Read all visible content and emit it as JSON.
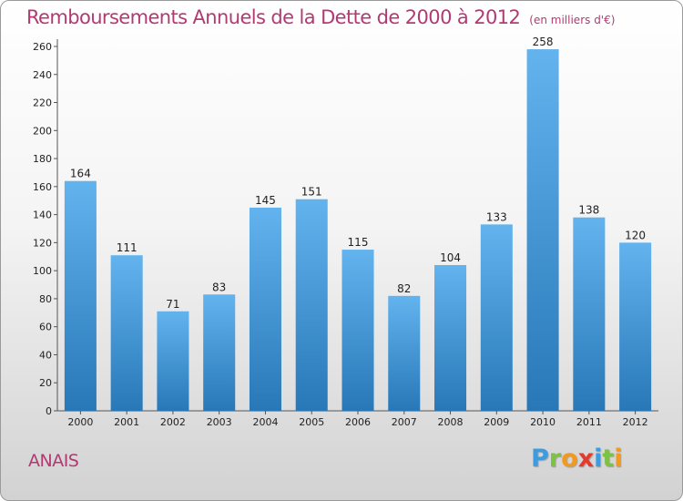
{
  "header": {
    "title": "Remboursements Annuels de la Dette de 2000 à 2012",
    "subtitle": "(en milliers d'€)"
  },
  "footer": {
    "commune": "ANAIS",
    "logo_letters": [
      {
        "char": "P",
        "color": "#3d9be0"
      },
      {
        "char": "r",
        "color": "#7cc243"
      },
      {
        "char": "o",
        "color": "#f29a1f"
      },
      {
        "char": "x",
        "color": "#e23b2e"
      },
      {
        "char": "i",
        "color": "#3d9be0"
      },
      {
        "char": "t",
        "color": "#7cc243"
      },
      {
        "char": "i",
        "color": "#f29a1f"
      }
    ]
  },
  "chart_data": {
    "type": "bar",
    "categories": [
      "2000",
      "2001",
      "2002",
      "2003",
      "2004",
      "2005",
      "2006",
      "2007",
      "2008",
      "2009",
      "2010",
      "2011",
      "2012"
    ],
    "values": [
      164,
      111,
      71,
      83,
      145,
      151,
      115,
      82,
      104,
      133,
      258,
      138,
      120
    ],
    "title": "Remboursements Annuels de la Dette de 2000 à 2012",
    "subtitle": "(en milliers d'€)",
    "ylim": [
      0,
      260
    ],
    "yticks": [
      0,
      20,
      40,
      60,
      80,
      100,
      120,
      140,
      160,
      180,
      200,
      220,
      240,
      260
    ],
    "grid": false,
    "bar_color_top": "#62b3ee",
    "bar_color_bottom": "#2878b8"
  }
}
